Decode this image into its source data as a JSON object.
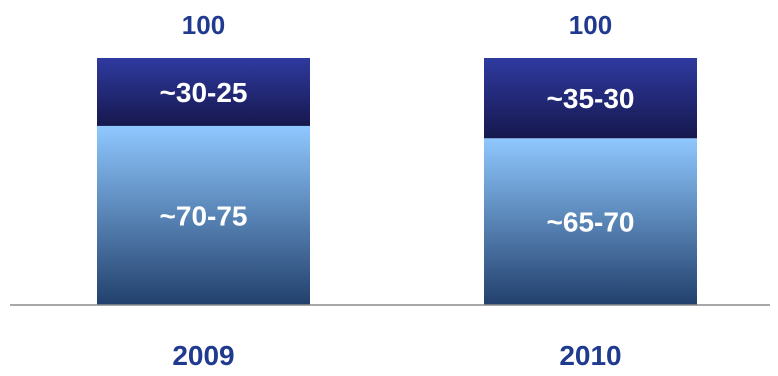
{
  "chart_data": {
    "type": "bar",
    "stacked": true,
    "categories": [
      "2009",
      "2010"
    ],
    "totals": [
      "100",
      "100"
    ],
    "series": [
      {
        "values": [
          72.5,
          67.5
        ],
        "labels": [
          "~70-75",
          "~65-70"
        ],
        "color_top": "#8fc8ff",
        "color_bottom": "#22406c"
      },
      {
        "values": [
          27.5,
          32.5
        ],
        "labels": [
          "~30-25",
          "~35-30"
        ],
        "color_top": "#2f3aa0",
        "color_bottom": "#16184e"
      }
    ],
    "ylim": [
      0,
      100
    ],
    "grid": false,
    "legend": "none",
    "baseline_color": "#8a8a8a",
    "text_color": "#1f3a8f"
  }
}
